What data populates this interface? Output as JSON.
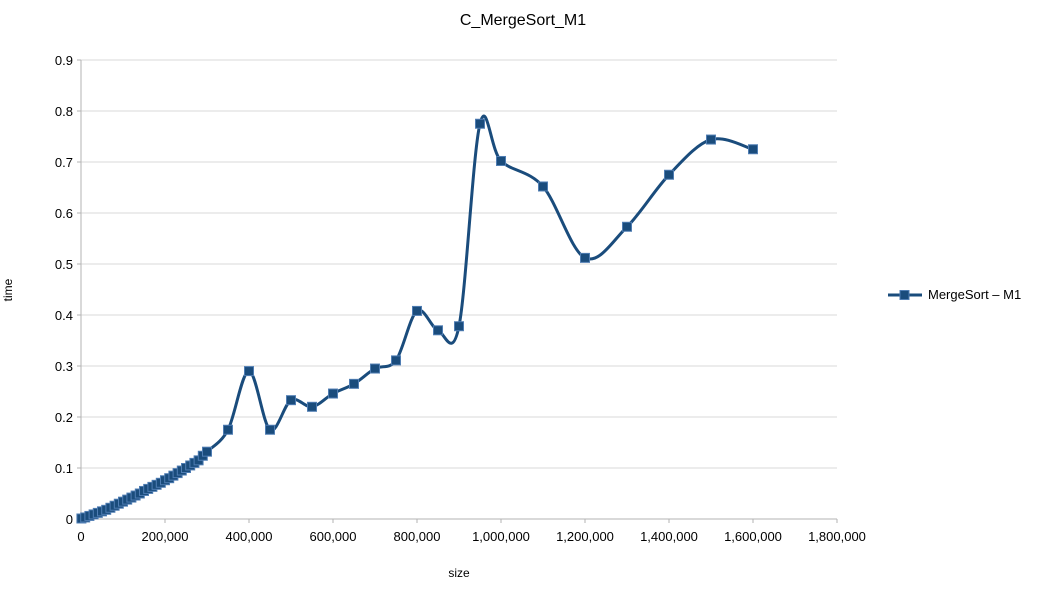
{
  "title": "C_MergeSort_M1",
  "colors": {
    "series": "#1A4C7C",
    "marker_border": "#4F7DB3",
    "gridline": "#D9D9D9",
    "axis_line": "#B3B3B3",
    "text": "#000000",
    "background": "#FFFFFF"
  },
  "legend": {
    "label": "MergeSort – M1"
  },
  "axes": {
    "x_label": "size",
    "y_label": "time",
    "x_tick_labels": [
      "0",
      "200,000",
      "400,000",
      "600,000",
      "800,000",
      "1,000,000",
      "1,200,000",
      "1,400,000",
      "1,600,000",
      "1,800,000"
    ],
    "y_tick_labels": [
      "0",
      "0.1",
      "0.2",
      "0.3",
      "0.4",
      "0.5",
      "0.6",
      "0.7",
      "0.8",
      "0.9"
    ]
  },
  "chart_data": {
    "type": "line",
    "title": "C_MergeSort_M1",
    "xlabel": "size",
    "ylabel": "time",
    "xlim": [
      0,
      1800000
    ],
    "ylim": [
      0,
      0.9
    ],
    "x_tick_step": 200000,
    "y_tick_step": 0.1,
    "grid": "horizontal",
    "smooth": true,
    "legend_position": "right",
    "series": [
      {
        "name": "MergeSort – M1",
        "color": "#1A4C7C",
        "marker": "square",
        "x": [
          1000,
          10000,
          20000,
          30000,
          40000,
          50000,
          60000,
          70000,
          80000,
          90000,
          100000,
          110000,
          120000,
          130000,
          140000,
          150000,
          160000,
          170000,
          180000,
          190000,
          200000,
          210000,
          220000,
          230000,
          240000,
          250000,
          260000,
          270000,
          280000,
          290000,
          300000,
          350000,
          400000,
          450000,
          500000,
          550000,
          600000,
          650000,
          700000,
          750000,
          800000,
          850000,
          900000,
          950000,
          1000000,
          1100000,
          1200000,
          1300000,
          1400000,
          1500000,
          1600000
        ],
        "y": [
          0.001,
          0.003,
          0.006,
          0.009,
          0.012,
          0.015,
          0.018,
          0.022,
          0.026,
          0.03,
          0.034,
          0.038,
          0.042,
          0.046,
          0.05,
          0.055,
          0.059,
          0.063,
          0.067,
          0.071,
          0.076,
          0.08,
          0.085,
          0.09,
          0.095,
          0.1,
          0.105,
          0.11,
          0.115,
          0.124,
          0.132,
          0.175,
          0.29,
          0.175,
          0.233,
          0.22,
          0.246,
          0.265,
          0.295,
          0.311,
          0.408,
          0.37,
          0.378,
          0.775,
          0.702,
          0.652,
          0.512,
          0.573,
          0.675,
          0.744,
          0.725
        ]
      }
    ]
  }
}
